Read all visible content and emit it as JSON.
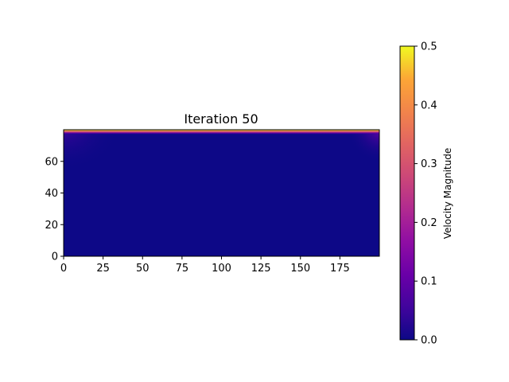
{
  "chart_data": {
    "type": "heatmap",
    "title": "Iteration 50",
    "xlabel": "",
    "ylabel": "",
    "grid": false,
    "x_range": [
      0,
      200
    ],
    "y_range": [
      0,
      80
    ],
    "x_ticks": [
      "0",
      "25",
      "50",
      "75",
      "100",
      "125",
      "150",
      "175"
    ],
    "x_tick_values": [
      0,
      25,
      50,
      75,
      100,
      125,
      150,
      175
    ],
    "y_ticks": [
      "0",
      "20",
      "40",
      "60"
    ],
    "y_tick_values": [
      0,
      20,
      40,
      60
    ],
    "colormap": "plasma",
    "colorbar": {
      "label": "Velocity Magnitude",
      "range": [
        0.0,
        0.5
      ],
      "ticks": [
        "0.0",
        "0.1",
        "0.2",
        "0.3",
        "0.4",
        "0.5"
      ],
      "tick_values": [
        0.0,
        0.1,
        0.2,
        0.3,
        0.4,
        0.5
      ],
      "placement": "right"
    },
    "field_description_values": {
      "lid_velocity": 0.5,
      "interior_velocity": 0.0
    }
  }
}
